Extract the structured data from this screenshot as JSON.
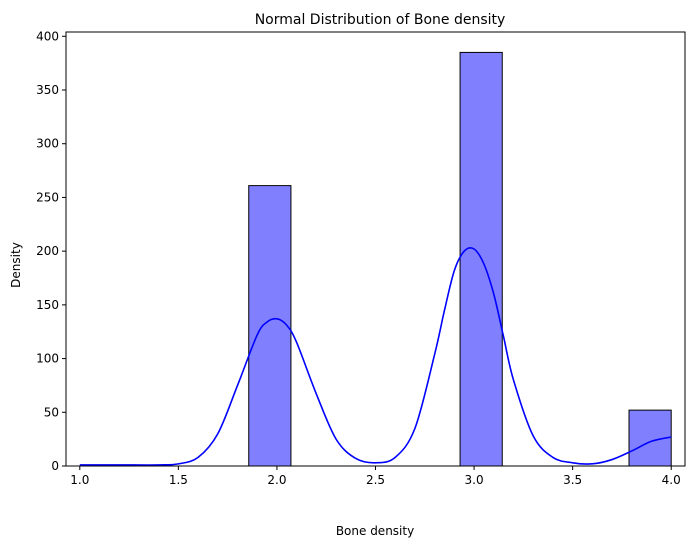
{
  "chart_data": {
    "type": "bar",
    "title": "Normal Distribution of Bone density",
    "xlabel": "Bone density",
    "ylabel": "Density",
    "xlim": [
      0.93,
      4.07
    ],
    "ylim": [
      0,
      404
    ],
    "x_ticks": [
      1.0,
      1.5,
      2.0,
      2.5,
      3.0,
      3.5,
      4.0
    ],
    "x_tick_labels": [
      "1.0",
      "1.5",
      "2.0",
      "2.5",
      "3.0",
      "3.5",
      "4.0"
    ],
    "y_ticks": [
      0,
      50,
      100,
      150,
      200,
      250,
      300,
      350,
      400
    ],
    "y_tick_labels": [
      "0",
      "50",
      "100",
      "150",
      "200",
      "250",
      "300",
      "350",
      "400"
    ],
    "bins": [
      {
        "x0": 1.857,
        "x1": 2.071,
        "count": 261
      },
      {
        "x0": 2.929,
        "x1": 3.143,
        "count": 385
      },
      {
        "x0": 3.786,
        "x1": 4.0,
        "count": 52
      }
    ],
    "kde": {
      "x": [
        1.0,
        1.2,
        1.4,
        1.5,
        1.6,
        1.7,
        1.8,
        1.9,
        1.95,
        2.0,
        2.05,
        2.1,
        2.2,
        2.3,
        2.4,
        2.5,
        2.6,
        2.7,
        2.8,
        2.85,
        2.9,
        2.95,
        3.0,
        3.05,
        3.1,
        3.15,
        3.2,
        3.3,
        3.4,
        3.5,
        3.6,
        3.7,
        3.8,
        3.9,
        4.0
      ],
      "y": [
        1,
        1,
        1,
        2,
        8,
        30,
        75,
        122,
        134,
        137,
        131,
        115,
        67,
        25,
        7,
        3,
        8,
        35,
        104,
        145,
        182,
        200,
        202,
        188,
        160,
        120,
        80,
        28,
        8,
        3,
        2,
        6,
        14,
        23,
        27
      ]
    },
    "grid": false,
    "colors": {
      "bar_fill": "#8080ff",
      "bar_edge": "#000000",
      "kde_line": "#0000ff"
    }
  }
}
